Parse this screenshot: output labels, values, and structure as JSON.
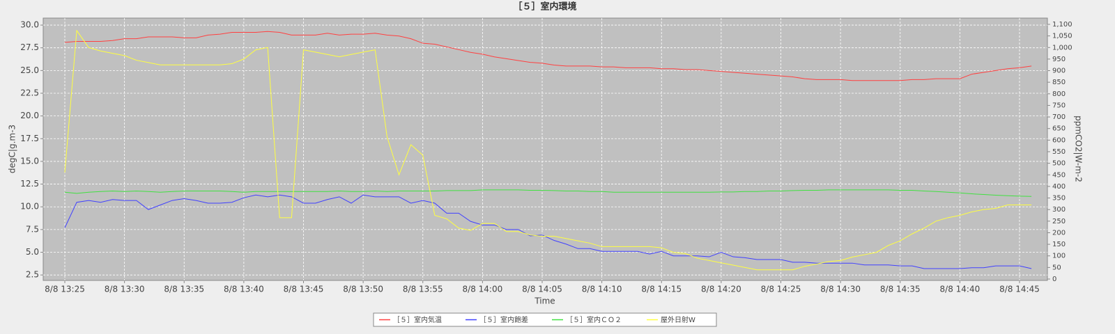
{
  "chart_data": {
    "type": "line",
    "title": "［５］室内環境",
    "x_label": "Time",
    "y_label": "degC|g.m-3",
    "y2_label": "ppmCO2|W-m-2",
    "grid": true,
    "categories": [
      "8/8 13:25",
      null,
      null,
      null,
      null,
      "8/8 13:30",
      null,
      null,
      null,
      null,
      "8/8 13:35",
      null,
      null,
      null,
      null,
      "8/8 13:40",
      null,
      null,
      null,
      null,
      "8/8 13:45",
      null,
      null,
      null,
      null,
      "8/8 13:50",
      null,
      null,
      null,
      null,
      "8/8 13:55",
      null,
      null,
      null,
      null,
      "8/8 14:00",
      null,
      null,
      null,
      null,
      "8/8 14:05",
      null,
      null,
      null,
      null,
      "8/8 14:10",
      null,
      null,
      null,
      null,
      "8/8 14:15",
      null,
      null,
      null,
      null,
      "8/8 14:20",
      null,
      null,
      null,
      null,
      "8/8 14:25",
      null,
      null,
      null,
      null,
      "8/8 14:30",
      null,
      null,
      null,
      null,
      "8/8 14:35",
      null,
      null,
      null,
      null,
      "8/8 14:40",
      null,
      null,
      null,
      null,
      "8/8 14:45",
      null
    ],
    "ylim": [
      1.9,
      30.77
    ],
    "yticks": [
      2.5,
      {
        "value": 5,
        "label": "5.0"
      },
      7.5,
      {
        "value": 10,
        "label": "10.0"
      },
      12.5,
      {
        "value": 15,
        "label": "15.0"
      },
      17.5,
      {
        "value": 20,
        "label": "20.0"
      },
      22.5,
      {
        "value": 25,
        "label": "25.0"
      },
      27.5,
      {
        "value": 30,
        "label": "30.0"
      }
    ],
    "y2lim": [
      -6,
      1127
    ],
    "y2ticks": [
      0,
      50,
      100,
      150,
      200,
      250,
      300,
      350,
      400,
      450,
      500,
      550,
      600,
      650,
      700,
      750,
      800,
      850,
      900,
      950,
      {
        "value": 1000,
        "label": "1,000"
      },
      {
        "value": 1050,
        "label": "1,050"
      },
      {
        "value": 1100,
        "label": "1,100"
      }
    ],
    "series": [
      {
        "name": "［５］室内気温",
        "color": "#ff4040",
        "values": [
          28.1,
          28.2,
          28.2,
          28.2,
          28.3,
          28.5,
          28.5,
          28.7,
          28.7,
          28.7,
          28.6,
          28.6,
          28.9,
          29.0,
          29.2,
          29.2,
          29.2,
          29.3,
          29.2,
          28.9,
          28.9,
          28.9,
          29.1,
          28.9,
          29.0,
          29.0,
          29.1,
          28.9,
          28.8,
          28.5,
          28.0,
          27.9,
          27.6,
          27.3,
          27.0,
          26.8,
          26.5,
          26.3,
          26.1,
          25.9,
          25.8,
          25.6,
          25.5,
          25.5,
          25.5,
          25.4,
          25.4,
          25.3,
          25.3,
          25.3,
          25.2,
          25.2,
          25.1,
          25.1,
          25.0,
          24.9,
          24.8,
          24.7,
          24.6,
          24.5,
          24.4,
          24.3,
          24.1,
          24.0,
          24.0,
          24.0,
          23.9,
          23.9,
          23.9,
          23.9,
          23.9,
          24.0,
          24.0,
          24.1,
          24.1,
          24.1,
          24.6,
          24.8,
          25.0,
          25.2,
          25.3,
          25.5
        ]
      },
      {
        "name": "［５］室内飽差",
        "color": "#4040ff",
        "values": [
          7.7,
          10.5,
          10.7,
          10.5,
          10.8,
          10.7,
          10.7,
          9.7,
          10.2,
          10.7,
          10.9,
          10.7,
          10.4,
          10.4,
          10.5,
          11.0,
          11.3,
          11.1,
          11.3,
          11.1,
          10.4,
          10.4,
          10.8,
          11.1,
          10.4,
          11.3,
          11.1,
          11.1,
          11.1,
          10.4,
          10.7,
          10.4,
          9.3,
          9.3,
          8.4,
          8.0,
          8.0,
          7.5,
          7.5,
          6.8,
          6.9,
          6.3,
          5.9,
          5.4,
          5.4,
          5.1,
          5.1,
          5.1,
          5.1,
          4.8,
          5.1,
          4.6,
          4.6,
          4.6,
          4.5,
          5.0,
          4.5,
          4.4,
          4.2,
          4.2,
          4.2,
          3.9,
          3.9,
          3.8,
          3.8,
          3.8,
          3.8,
          3.6,
          3.6,
          3.6,
          3.5,
          3.5,
          3.2,
          3.2,
          3.2,
          3.2,
          3.3,
          3.3,
          3.5,
          3.5,
          3.5,
          3.2
        ]
      },
      {
        "name": "［５］室内ＣＯ２",
        "color": "#40e040",
        "axis": "y2",
        "values": [
          375,
          370,
          375,
          378,
          380,
          378,
          380,
          378,
          375,
          378,
          380,
          380,
          380,
          380,
          378,
          375,
          378,
          378,
          378,
          378,
          378,
          378,
          378,
          380,
          378,
          378,
          380,
          378,
          380,
          380,
          380,
          380,
          382,
          382,
          382,
          385,
          385,
          385,
          385,
          383,
          383,
          382,
          380,
          380,
          378,
          378,
          375,
          375,
          375,
          375,
          375,
          375,
          375,
          375,
          375,
          376,
          376,
          378,
          378,
          380,
          380,
          382,
          383,
          383,
          385,
          385,
          385,
          385,
          385,
          385,
          383,
          383,
          380,
          378,
          375,
          372,
          368,
          365,
          362,
          360,
          358,
          357
        ]
      },
      {
        "name": "屋外日射W",
        "color": "#ffff40",
        "axis": "y2",
        "values": [
          460,
          1073,
          1000,
          985,
          975,
          965,
          945,
          935,
          925,
          925,
          925,
          925,
          925,
          925,
          930,
          950,
          990,
          1000,
          265,
          265,
          990,
          980,
          970,
          960,
          970,
          980,
          990,
          615,
          450,
          580,
          535,
          275,
          260,
          220,
          210,
          240,
          240,
          205,
          205,
          190,
          185,
          185,
          175,
          165,
          155,
          140,
          140,
          140,
          140,
          140,
          135,
          115,
          110,
          90,
          80,
          70,
          60,
          50,
          40,
          40,
          40,
          40,
          55,
          65,
          75,
          80,
          95,
          105,
          115,
          145,
          165,
          195,
          220,
          250,
          265,
          275,
          290,
          300,
          305,
          320,
          320,
          320
        ]
      }
    ]
  }
}
